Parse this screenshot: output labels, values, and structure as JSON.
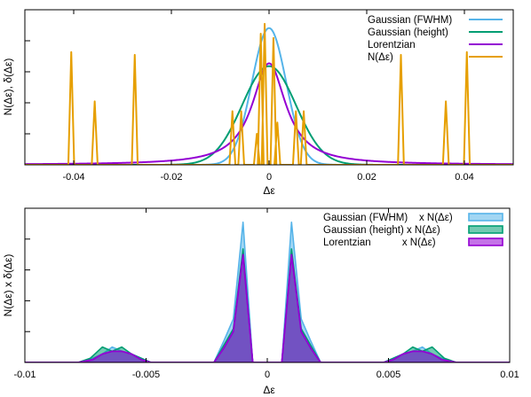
{
  "chart_data": [
    {
      "type": "line",
      "xlabel": "Δε",
      "ylabel": "N(Δε),  δ(Δε)",
      "xlim": [
        -0.05,
        0.05
      ],
      "ylim": [
        0,
        1.1
      ],
      "xticks": [
        -0.04,
        -0.02,
        0,
        0.02,
        0.04
      ],
      "xtick_labels": [
        "-0.04",
        "-0.02",
        "0",
        "0.02",
        "0.04"
      ],
      "grid": false,
      "legend_position": "top-right",
      "series": [
        {
          "name": "Gaussian (FWHM)",
          "color": "#56b4e9",
          "kind": "curve",
          "shape": "gaussian",
          "center": 0,
          "sigma": 0.0035,
          "amplitude": 0.97
        },
        {
          "name": "Gaussian (height)",
          "color": "#009e73",
          "kind": "curve",
          "shape": "gaussian",
          "center": 0,
          "sigma": 0.0055,
          "amplitude": 0.7
        },
        {
          "name": "Lorentzian",
          "color": "#9400d3",
          "kind": "curve",
          "shape": "lorentzian",
          "center": 0,
          "gamma": 0.0042,
          "amplitude": 0.72
        },
        {
          "name": "N(Δε)",
          "color": "#e69f00",
          "kind": "spikes",
          "halfwidth": 0.0006,
          "peaks": [
            {
              "x": -0.0405,
              "y": 0.8
            },
            {
              "x": -0.0357,
              "y": 0.45
            },
            {
              "x": -0.0275,
              "y": 0.78
            },
            {
              "x": -0.0075,
              "y": 0.38
            },
            {
              "x": -0.0057,
              "y": 0.38
            },
            {
              "x": -0.0025,
              "y": 0.22
            },
            {
              "x": -0.0017,
              "y": 0.93
            },
            {
              "x": -0.0009,
              "y": 1.0
            },
            {
              "x": 0.0009,
              "y": 0.9
            },
            {
              "x": 0.0017,
              "y": 0.3
            },
            {
              "x": 0.0055,
              "y": 0.38
            },
            {
              "x": 0.0071,
              "y": 0.38
            },
            {
              "x": 0.027,
              "y": 0.78
            },
            {
              "x": 0.0362,
              "y": 0.45
            },
            {
              "x": 0.0405,
              "y": 0.8
            }
          ]
        }
      ]
    },
    {
      "type": "area",
      "xlabel": "Δε",
      "ylabel": "N(Δε) x δ(Δε)",
      "xlim": [
        -0.01,
        0.01
      ],
      "ylim": [
        0,
        1.1
      ],
      "xticks": [
        -0.01,
        -0.005,
        0,
        0.005,
        0.01
      ],
      "xtick_labels": [
        "-0.01",
        "-0.005",
        "0",
        "0.005",
        "0.01"
      ],
      "grid": false,
      "legend_position": "top-right",
      "series": [
        {
          "name": "Gaussian (FWHM)    x N(Δε)",
          "color": "#56b4e9",
          "x": [
            -0.01,
            -0.0077,
            -0.0072,
            -0.0068,
            -0.0064,
            -0.006,
            -0.0056,
            -0.0052,
            -0.0048,
            -0.0022,
            -0.0018,
            -0.0014,
            -0.001,
            -0.0006,
            0,
            0.0006,
            0.001,
            0.0014,
            0.0018,
            0.0022,
            0.0048,
            0.0052,
            0.0056,
            0.006,
            0.0064,
            0.0068,
            0.0072,
            0.0077,
            0.01
          ],
          "y": [
            0,
            0,
            0.03,
            0.06,
            0.11,
            0.08,
            0.06,
            0.03,
            0,
            0,
            0.15,
            0.31,
            1.0,
            0,
            0,
            0,
            1.0,
            0.31,
            0.15,
            0,
            0,
            0.03,
            0.06,
            0.08,
            0.11,
            0.06,
            0.03,
            0,
            0
          ]
        },
        {
          "name": "Gaussian (height) x N(Δε)",
          "color": "#009e73",
          "x": [
            -0.01,
            -0.0078,
            -0.0073,
            -0.0068,
            -0.0064,
            -0.006,
            -0.0056,
            -0.0052,
            -0.0048,
            -0.0022,
            -0.0018,
            -0.0014,
            -0.001,
            -0.0006,
            0,
            0.0006,
            0.001,
            0.0014,
            0.0018,
            0.0022,
            0.0048,
            0.0052,
            0.0056,
            0.006,
            0.0064,
            0.0068,
            0.0073,
            0.0078,
            0.01
          ],
          "y": [
            0,
            0,
            0.03,
            0.11,
            0.08,
            0.11,
            0.06,
            0.03,
            0,
            0,
            0.12,
            0.24,
            0.81,
            0,
            0,
            0,
            0.81,
            0.24,
            0.12,
            0,
            0,
            0.03,
            0.06,
            0.11,
            0.08,
            0.11,
            0.03,
            0,
            0
          ]
        },
        {
          "name": "Lorentzian           x N(Δε)",
          "color": "#9400d3",
          "x": [
            -0.01,
            -0.0078,
            -0.0072,
            -0.0068,
            -0.0064,
            -0.006,
            -0.0056,
            -0.0052,
            -0.0048,
            -0.0022,
            -0.0018,
            -0.0014,
            -0.001,
            -0.0006,
            0,
            0.0006,
            0.001,
            0.0014,
            0.0018,
            0.0022,
            0.0048,
            0.0052,
            0.0056,
            0.006,
            0.0064,
            0.0068,
            0.0072,
            0.0078,
            0.01
          ],
          "y": [
            0,
            0,
            0.02,
            0.06,
            0.08,
            0.08,
            0.06,
            0.02,
            0,
            0,
            0.1,
            0.22,
            0.77,
            0,
            0,
            0,
            0.77,
            0.22,
            0.1,
            0,
            0,
            0.02,
            0.06,
            0.08,
            0.08,
            0.06,
            0.02,
            0,
            0
          ]
        }
      ]
    }
  ]
}
